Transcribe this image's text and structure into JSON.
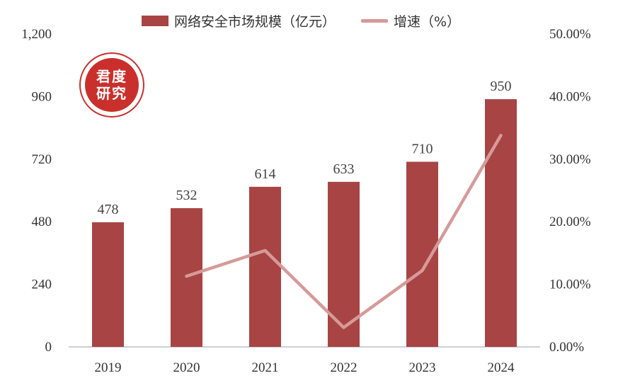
{
  "legend": {
    "bar_label": "网络安全市场规模（亿元）",
    "line_label": "增速（%）"
  },
  "badge": {
    "line1": "君度",
    "line2": "研究"
  },
  "colors": {
    "bar": "#a84444",
    "line": "#d69a98",
    "badge": "#c9302c",
    "axis": "#bfbfbf"
  },
  "chart_data": {
    "type": "bar",
    "categories": [
      "2019",
      "2020",
      "2021",
      "2022",
      "2023",
      "2024"
    ],
    "series": [
      {
        "name": "网络安全市场规模（亿元）",
        "type": "bar",
        "axis": "left",
        "values": [
          478,
          532,
          614,
          633,
          710,
          950
        ]
      },
      {
        "name": "增速（%）",
        "type": "line",
        "axis": "right",
        "values": [
          null,
          11.3,
          15.4,
          3.1,
          12.2,
          33.8
        ]
      }
    ],
    "data_labels": [
      "478",
      "532",
      "614",
      "633",
      "710",
      "950"
    ],
    "y_left": {
      "ylim": [
        0,
        1200
      ],
      "ticks": [
        "0",
        "240",
        "480",
        "720",
        "960",
        "1,200"
      ]
    },
    "y_right": {
      "ylim": [
        0,
        50
      ],
      "ticks": [
        "0.00%",
        "10.00%",
        "20.00%",
        "30.00%",
        "40.00%",
        "50.00%"
      ]
    },
    "grid": false,
    "legend_position": "top"
  }
}
